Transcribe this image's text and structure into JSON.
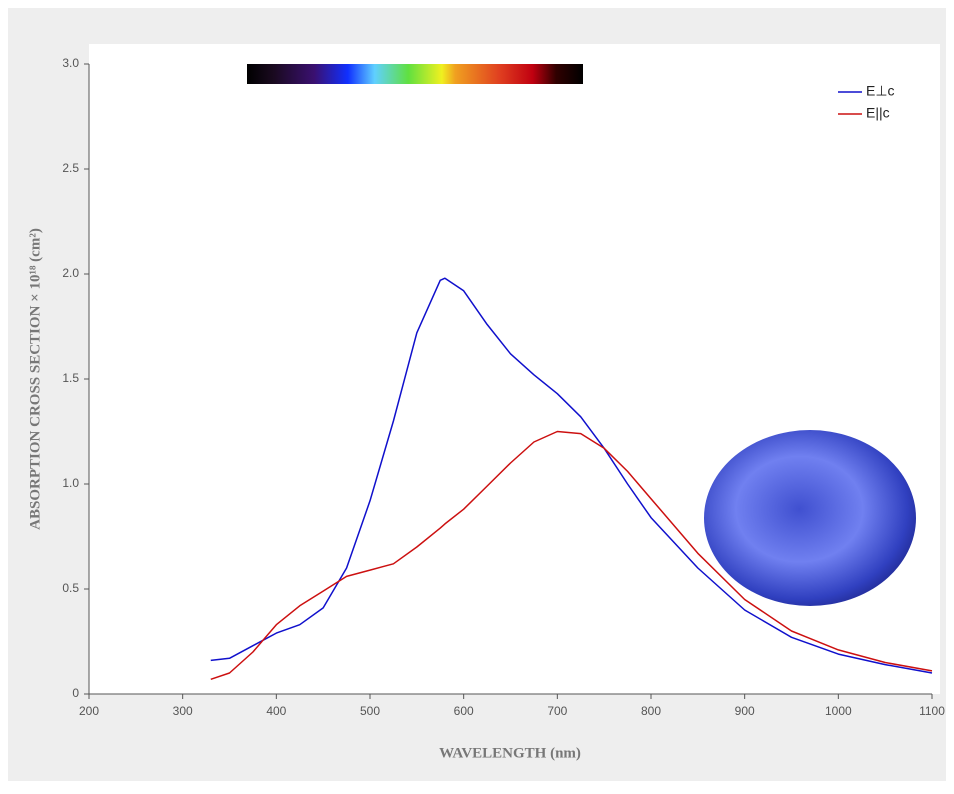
{
  "chart_data": {
    "type": "line",
    "xlabel": "WAVELENGTH (nm)",
    "ylabel": "ABSORPTION CROSS SECTION × 10¹⁸ (cm²)",
    "x": [
      330,
      350,
      375,
      400,
      425,
      450,
      475,
      500,
      525,
      550,
      575,
      580,
      600,
      625,
      650,
      675,
      700,
      725,
      750,
      775,
      800,
      850,
      900,
      950,
      1000,
      1050,
      1100
    ],
    "series": [
      {
        "name": "E⊥c",
        "color": "#1010cc",
        "values": [
          0.16,
          0.17,
          0.23,
          0.29,
          0.33,
          0.41,
          0.6,
          0.92,
          1.3,
          1.72,
          1.97,
          1.98,
          1.92,
          1.76,
          1.62,
          1.52,
          1.43,
          1.32,
          1.17,
          1.0,
          0.84,
          0.6,
          0.4,
          0.27,
          0.19,
          0.14,
          0.1
        ]
      },
      {
        "name": "E||c",
        "color": "#cc1010",
        "values": [
          0.07,
          0.1,
          0.2,
          0.33,
          0.42,
          0.49,
          0.56,
          0.59,
          0.62,
          0.7,
          0.79,
          0.81,
          0.88,
          0.99,
          1.1,
          1.2,
          1.25,
          1.24,
          1.17,
          1.06,
          0.93,
          0.67,
          0.45,
          0.3,
          0.21,
          0.15,
          0.11
        ]
      }
    ],
    "xlim": [
      200,
      1100
    ],
    "ylim": [
      0,
      3
    ],
    "xticks": [
      200,
      300,
      400,
      500,
      600,
      700,
      800,
      900,
      1000,
      1100
    ],
    "yticks": [
      0,
      0.5,
      {
        "value": 1,
        "label": "1.0"
      },
      1.5,
      {
        "value": 2,
        "label": "2.0"
      },
      2.5,
      {
        "value": 3,
        "label": "3.0"
      }
    ],
    "legend": "upper right"
  }
}
